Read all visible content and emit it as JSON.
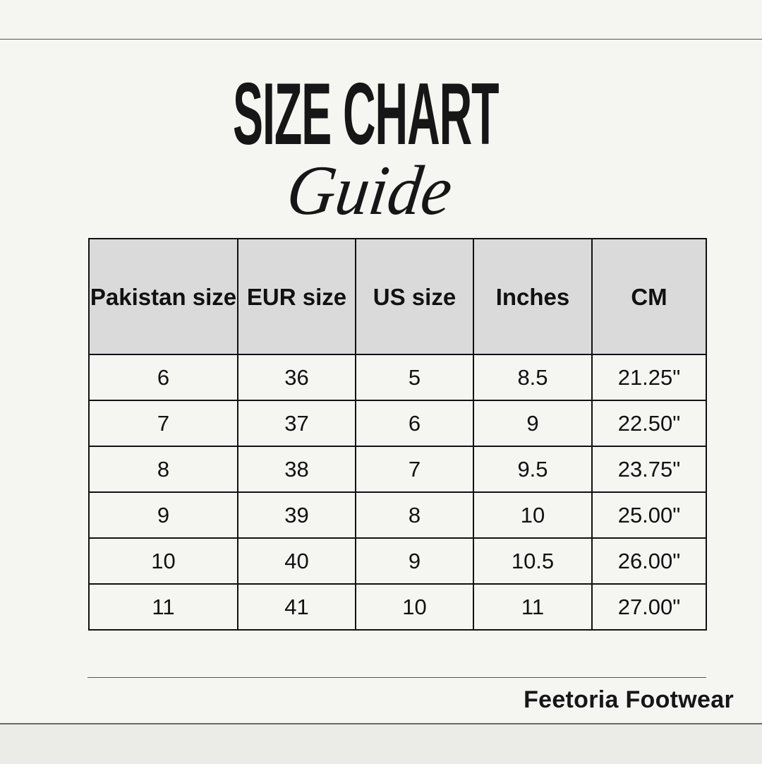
{
  "title": {
    "main": "SIZE CHART",
    "script": "Guide"
  },
  "table": {
    "headers": [
      "Pakistan size",
      "EUR size",
      "US size",
      "Inches",
      "CM"
    ],
    "rows": [
      [
        "6",
        "36",
        "5",
        "8.5",
        "21.25\""
      ],
      [
        "7",
        "37",
        "6",
        "9",
        "22.50\""
      ],
      [
        "8",
        "38",
        "7",
        "9.5",
        "23.75\""
      ],
      [
        "9",
        "39",
        "8",
        "10",
        "25.00\""
      ],
      [
        "10",
        "40",
        "9",
        "10.5",
        "26.00\""
      ],
      [
        "11",
        "41",
        "10",
        "11",
        "27.00\""
      ]
    ]
  },
  "footer": {
    "brand": "Feetoria Footwear"
  },
  "colors": {
    "background": "#f5f5f2",
    "header_fill": "#dadada",
    "text": "#111111"
  }
}
